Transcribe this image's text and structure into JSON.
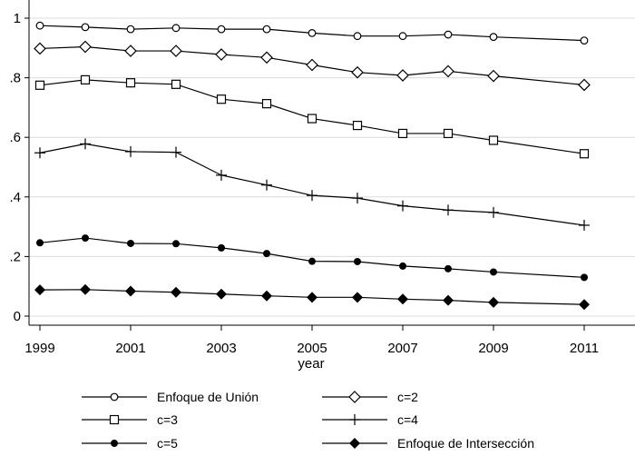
{
  "chart_data": {
    "type": "line",
    "title": "",
    "xlabel": "year",
    "ylabel": "",
    "xlim": [
      1999,
      2011
    ],
    "ylim": [
      0,
      1
    ],
    "grid": true,
    "legend_position": "bottom",
    "x_ticks": [
      "1999",
      "2001",
      "2003",
      "2005",
      "2007",
      "2009",
      "2011"
    ],
    "y_ticks": [
      "0",
      ".2",
      ".4",
      ".6",
      ".8",
      "1"
    ],
    "x": [
      1999,
      2000,
      2001,
      2002,
      2003,
      2004,
      2005,
      2006,
      2007,
      2008,
      2009,
      2011
    ],
    "series": [
      {
        "name": "Enfoque de Unión",
        "marker": "circle-open",
        "values": [
          0.975,
          0.97,
          0.963,
          0.967,
          0.963,
          0.963,
          0.95,
          0.94,
          0.94,
          0.945,
          0.937,
          0.925
        ]
      },
      {
        "name": "c=2",
        "marker": "diamond-open",
        "values": [
          0.898,
          0.904,
          0.89,
          0.89,
          0.878,
          0.868,
          0.843,
          0.818,
          0.808,
          0.822,
          0.806,
          0.776
        ]
      },
      {
        "name": "c=3",
        "marker": "square-open",
        "values": [
          0.775,
          0.793,
          0.783,
          0.778,
          0.728,
          0.713,
          0.663,
          0.64,
          0.613,
          0.613,
          0.59,
          0.545
        ]
      },
      {
        "name": "c=4",
        "marker": "plus",
        "values": [
          0.548,
          0.578,
          0.552,
          0.55,
          0.473,
          0.44,
          0.405,
          0.396,
          0.37,
          0.356,
          0.348,
          0.305
        ]
      },
      {
        "name": "c=5",
        "marker": "circle-filled",
        "values": [
          0.246,
          0.262,
          0.244,
          0.243,
          0.229,
          0.21,
          0.184,
          0.183,
          0.168,
          0.159,
          0.148,
          0.13
        ]
      },
      {
        "name": "Enfoque de Intersección",
        "marker": "diamond-filled",
        "values": [
          0.088,
          0.089,
          0.084,
          0.08,
          0.074,
          0.068,
          0.063,
          0.063,
          0.057,
          0.053,
          0.046,
          0.039
        ]
      }
    ]
  }
}
